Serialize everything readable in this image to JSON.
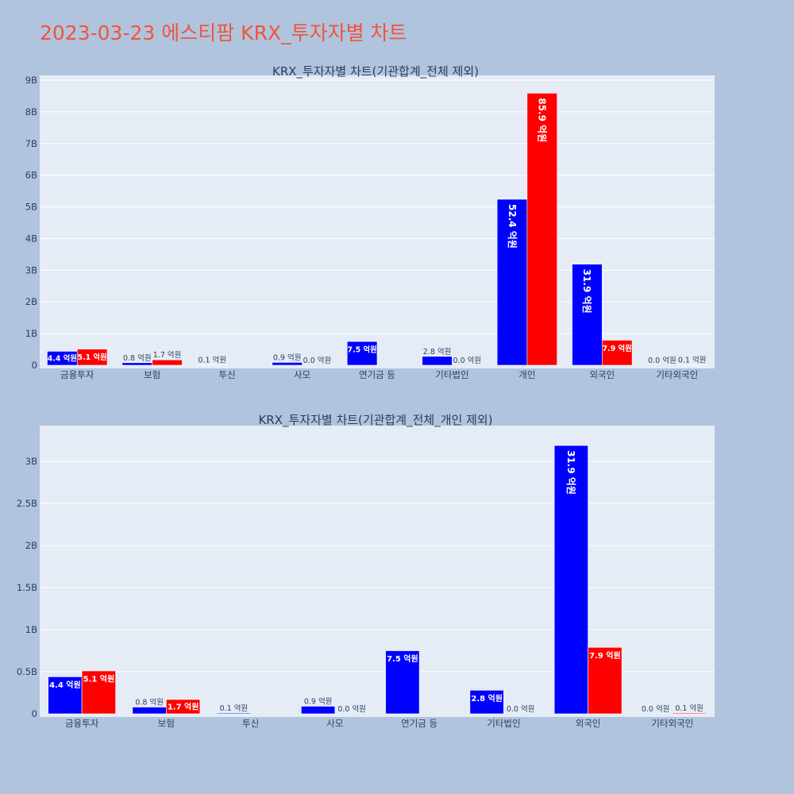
{
  "page_title": "2023-03-23 에스티팜 KRX_투자자별 차트",
  "colors": {
    "buy": "#0000ff",
    "sell": "#ff0000",
    "plot_bg": "#e5ecf6",
    "page_bg": "#b0c4de",
    "title": "#ef553b",
    "text": "#2a3f5f"
  },
  "chart_data": [
    {
      "type": "bar",
      "title": "KRX_투자자별 차트(기관합계_전체 제외)",
      "categories": [
        "금융투자",
        "보험",
        "투신",
        "사모",
        "연기금 등",
        "기타법인",
        "개인",
        "외국인",
        "기타외국인"
      ],
      "series": [
        {
          "color": "#0000ff",
          "values": [
            440000000,
            80000000,
            10000000,
            90000000,
            750000000,
            280000000,
            5240000000,
            3190000000,
            0
          ],
          "labels": [
            "4.4 억원",
            "0.8 억원",
            "0.1 억원",
            "0.9 억원",
            "7.5 억원",
            "2.8 억원",
            "52.4 억원",
            "31.9 억원",
            "0.0 억원"
          ]
        },
        {
          "color": "#ff0000",
          "values": [
            510000000,
            170000000,
            null,
            0,
            null,
            0,
            8590000000,
            790000000,
            10000000
          ],
          "labels": [
            "5.1 억원",
            "1.7 억원",
            null,
            "0.0 억원",
            null,
            "0.0 억원",
            "85.9 억원",
            "7.9 억원",
            "0.1 억원"
          ]
        }
      ],
      "ylim": [
        0,
        9000000000
      ],
      "yticks": [
        0,
        1000000000,
        2000000000,
        3000000000,
        4000000000,
        5000000000,
        6000000000,
        7000000000,
        8000000000,
        9000000000
      ],
      "ytick_labels": [
        "0",
        "1B",
        "2B",
        "3B",
        "4B",
        "5B",
        "6B",
        "7B",
        "8B",
        "9B"
      ],
      "grid": true
    },
    {
      "type": "bar",
      "title": "KRX_투자자별 차트(기관합계_전체_개인 제외)",
      "categories": [
        "금융투자",
        "보험",
        "투신",
        "사모",
        "연기금 등",
        "기타법인",
        "외국인",
        "기타외국인"
      ],
      "series": [
        {
          "color": "#0000ff",
          "values": [
            440000000,
            80000000,
            10000000,
            90000000,
            750000000,
            280000000,
            3190000000,
            0
          ],
          "labels": [
            "4.4 억원",
            "0.8 억원",
            "0.1 억원",
            "0.9 억원",
            "7.5 억원",
            "2.8 억원",
            "31.9 억원",
            "0.0 억원"
          ]
        },
        {
          "color": "#ff0000",
          "values": [
            510000000,
            170000000,
            null,
            0,
            null,
            0,
            790000000,
            10000000
          ],
          "labels": [
            "5.1 억원",
            "1.7 억원",
            null,
            "0.0 억원",
            null,
            "0.0 억원",
            "7.9 억원",
            "0.1 억원"
          ]
        }
      ],
      "ylim": [
        0,
        3370000000
      ],
      "yticks": [
        0,
        500000000,
        1000000000,
        1500000000,
        2000000000,
        2500000000,
        3000000000
      ],
      "ytick_labels": [
        "0",
        "0.5B",
        "1B",
        "1.5B",
        "2B",
        "2.5B",
        "3B"
      ],
      "grid": true
    }
  ]
}
